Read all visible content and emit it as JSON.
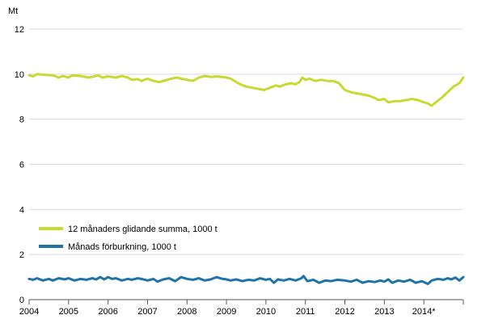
{
  "chart_data": {
    "type": "line",
    "title": "",
    "xlabel": "",
    "ylabel": "Mt",
    "ylim": [
      0,
      12
    ],
    "yticks": [
      0,
      2,
      4,
      6,
      8,
      10,
      12
    ],
    "xlim": [
      2004,
      2015
    ],
    "x_tick_labels": [
      "2004",
      "2005",
      "2006",
      "2007",
      "2008",
      "2009",
      "2010",
      "2011",
      "2012",
      "2013",
      "2014*"
    ],
    "grid": "horizontal",
    "legend_position": "lower-left",
    "series": [
      {
        "name": "12 månaders glidande summa, 1000 t",
        "color": "#c8d932",
        "x": [
          2004.0,
          2004.1,
          2004.2,
          2004.4,
          2004.6,
          2004.75,
          2004.85,
          2005.0,
          2005.1,
          2005.3,
          2005.5,
          2005.6,
          2005.75,
          2005.85,
          2006.0,
          2006.2,
          2006.35,
          2006.5,
          2006.6,
          2006.75,
          2006.85,
          2007.0,
          2007.15,
          2007.3,
          2007.5,
          2007.6,
          2007.75,
          2007.85,
          2008.0,
          2008.15,
          2008.3,
          2008.45,
          2008.6,
          2008.75,
          2008.9,
          2009.0,
          2009.1,
          2009.2,
          2009.35,
          2009.5,
          2009.65,
          2009.8,
          2009.95,
          2010.1,
          2010.25,
          2010.35,
          2010.5,
          2010.65,
          2010.75,
          2010.85,
          2010.92,
          2011.0,
          2011.1,
          2011.25,
          2011.4,
          2011.55,
          2011.7,
          2011.85,
          2012.0,
          2012.15,
          2012.3,
          2012.45,
          2012.6,
          2012.75,
          2012.85,
          2013.0,
          2013.1,
          2013.25,
          2013.4,
          2013.55,
          2013.7,
          2013.85,
          2014.0,
          2014.1,
          2014.2,
          2014.3,
          2014.45,
          2014.6,
          2014.75,
          2014.9,
          2015.0
        ],
        "values": [
          9.95,
          9.9,
          10.0,
          9.97,
          9.95,
          9.85,
          9.92,
          9.85,
          9.95,
          9.92,
          9.85,
          9.88,
          9.95,
          9.85,
          9.9,
          9.85,
          9.92,
          9.85,
          9.75,
          9.78,
          9.7,
          9.8,
          9.7,
          9.65,
          9.75,
          9.8,
          9.85,
          9.8,
          9.75,
          9.7,
          9.85,
          9.92,
          9.88,
          9.9,
          9.88,
          9.85,
          9.8,
          9.7,
          9.55,
          9.45,
          9.4,
          9.35,
          9.3,
          9.4,
          9.5,
          9.45,
          9.55,
          9.6,
          9.55,
          9.65,
          9.85,
          9.75,
          9.8,
          9.7,
          9.75,
          9.7,
          9.7,
          9.6,
          9.3,
          9.2,
          9.15,
          9.1,
          9.05,
          8.95,
          8.85,
          8.9,
          8.75,
          8.8,
          8.8,
          8.85,
          8.9,
          8.85,
          8.75,
          8.7,
          8.6,
          8.75,
          8.95,
          9.2,
          9.45,
          9.6,
          9.85
        ]
      },
      {
        "name": "Månads förburkning, 1000 t",
        "color": "#1f73a8",
        "x": [
          2004.0,
          2004.1,
          2004.2,
          2004.35,
          2004.5,
          2004.6,
          2004.75,
          2004.9,
          2005.0,
          2005.15,
          2005.3,
          2005.45,
          2005.6,
          2005.7,
          2005.8,
          2005.9,
          2006.0,
          2006.1,
          2006.2,
          2006.35,
          2006.5,
          2006.6,
          2006.75,
          2006.9,
          2007.0,
          2007.15,
          2007.25,
          2007.4,
          2007.55,
          2007.7,
          2007.85,
          2008.0,
          2008.15,
          2008.3,
          2008.45,
          2008.6,
          2008.75,
          2008.9,
          2009.0,
          2009.1,
          2009.25,
          2009.4,
          2009.55,
          2009.7,
          2009.85,
          2010.0,
          2010.1,
          2010.2,
          2010.3,
          2010.45,
          2010.6,
          2010.75,
          2010.9,
          2010.95,
          2011.05,
          2011.2,
          2011.35,
          2011.5,
          2011.65,
          2011.8,
          2012.0,
          2012.15,
          2012.3,
          2012.45,
          2012.6,
          2012.75,
          2012.9,
          2013.0,
          2013.1,
          2013.2,
          2013.35,
          2013.5,
          2013.65,
          2013.8,
          2013.95,
          2014.1,
          2014.2,
          2014.35,
          2014.5,
          2014.6,
          2014.7,
          2014.8,
          2014.9,
          2015.0
        ],
        "values": [
          0.92,
          0.88,
          0.95,
          0.85,
          0.92,
          0.85,
          0.95,
          0.9,
          0.95,
          0.85,
          0.92,
          0.88,
          0.95,
          0.9,
          1.0,
          0.9,
          1.0,
          0.92,
          0.95,
          0.85,
          0.92,
          0.88,
          0.95,
          0.9,
          0.85,
          0.92,
          0.8,
          0.9,
          0.95,
          0.82,
          1.0,
          0.92,
          0.88,
          0.95,
          0.85,
          0.9,
          1.0,
          0.92,
          0.9,
          0.85,
          0.9,
          0.82,
          0.88,
          0.85,
          0.95,
          0.88,
          0.92,
          0.75,
          0.9,
          0.85,
          0.92,
          0.85,
          0.95,
          1.05,
          0.82,
          0.88,
          0.75,
          0.85,
          0.82,
          0.88,
          0.85,
          0.8,
          0.88,
          0.75,
          0.82,
          0.78,
          0.85,
          0.8,
          0.9,
          0.75,
          0.85,
          0.8,
          0.88,
          0.75,
          0.82,
          0.7,
          0.85,
          0.92,
          0.88,
          0.95,
          0.9,
          0.98,
          0.85,
          1.0
        ]
      }
    ]
  }
}
